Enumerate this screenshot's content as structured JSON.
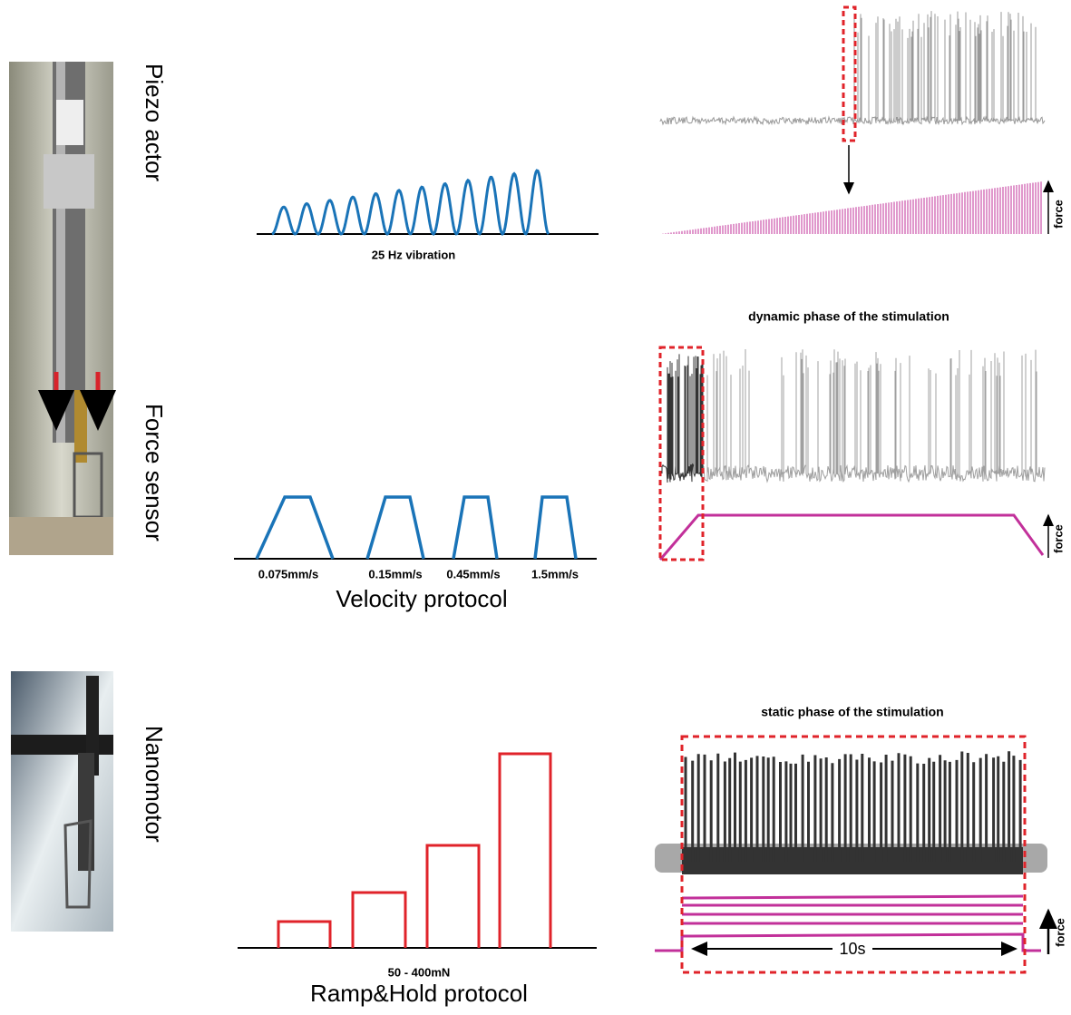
{
  "piezo": {
    "label": "Piezo actor",
    "caption": "25 Hz vibration",
    "force_label": "force"
  },
  "force_sensor": {
    "label": "Force sensor",
    "velocities": [
      "0.075mm/s",
      "0.15mm/s",
      "0.45mm/s",
      "1.5mm/s"
    ],
    "protocol": "Velocity protocol",
    "phase_title": "dynamic phase of the stimulation",
    "force_label": "force"
  },
  "nanomotor": {
    "label": "Nanomotor",
    "range": "50 - 400mN",
    "protocol": "Ramp&Hold protocol",
    "phase_title": "static phase of the stimulation",
    "duration": "10s",
    "force_label": "force"
  }
}
